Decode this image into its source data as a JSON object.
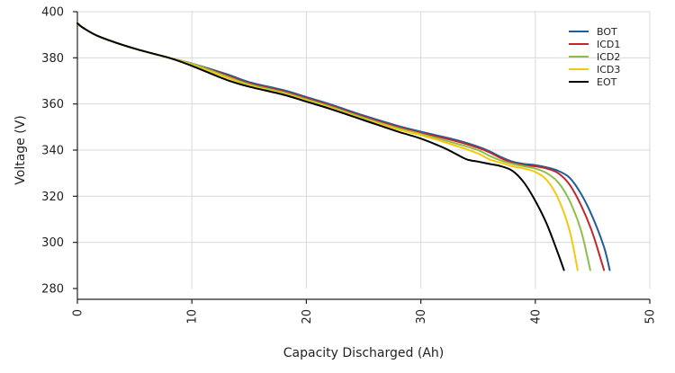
{
  "chart_data": {
    "type": "line",
    "xlabel": "Capacity Discharged (Ah)",
    "ylabel": "Voltage (V)",
    "xlim": [
      0,
      50
    ],
    "ylim": [
      280,
      400
    ],
    "xticks": [
      0,
      10,
      20,
      30,
      40,
      50
    ],
    "yticks": [
      280,
      300,
      320,
      340,
      360,
      380,
      400
    ],
    "grid": true,
    "legend_position": "top-right",
    "series": [
      {
        "name": "BOT",
        "color": "#1f5f99",
        "points": [
          [
            0,
            395
          ],
          [
            0.5,
            393
          ],
          [
            2,
            389
          ],
          [
            5,
            384
          ],
          [
            8,
            380
          ],
          [
            10,
            377.5
          ],
          [
            13,
            373
          ],
          [
            15,
            369.5
          ],
          [
            18,
            366
          ],
          [
            20,
            363
          ],
          [
            22,
            360
          ],
          [
            25,
            355
          ],
          [
            28,
            350.5
          ],
          [
            30,
            348
          ],
          [
            33,
            344.5
          ],
          [
            35,
            341.5
          ],
          [
            36,
            339.5
          ],
          [
            37,
            337
          ],
          [
            38,
            335
          ],
          [
            39,
            334
          ],
          [
            40,
            333.5
          ],
          [
            41,
            332.5
          ],
          [
            42,
            331
          ],
          [
            43,
            328
          ],
          [
            44,
            321
          ],
          [
            45,
            311
          ],
          [
            46,
            298
          ],
          [
            46.5,
            288
          ]
        ]
      },
      {
        "name": "ICD1",
        "color": "#c0282d",
        "points": [
          [
            0,
            395
          ],
          [
            0.5,
            393
          ],
          [
            2,
            389
          ],
          [
            5,
            384
          ],
          [
            8,
            380
          ],
          [
            10,
            377.5
          ],
          [
            13,
            372.5
          ],
          [
            15,
            369
          ],
          [
            18,
            365.5
          ],
          [
            20,
            362.5
          ],
          [
            22,
            359.5
          ],
          [
            25,
            354.5
          ],
          [
            28,
            350
          ],
          [
            30,
            347.5
          ],
          [
            33,
            344
          ],
          [
            35,
            341
          ],
          [
            36,
            339
          ],
          [
            37,
            336.5
          ],
          [
            38,
            334.5
          ],
          [
            39,
            333.5
          ],
          [
            40,
            333
          ],
          [
            41,
            332
          ],
          [
            42,
            330
          ],
          [
            43,
            325
          ],
          [
            44,
            316
          ],
          [
            45,
            304
          ],
          [
            46,
            288
          ]
        ]
      },
      {
        "name": "ICD2",
        "color": "#8cc04b",
        "points": [
          [
            0,
            395
          ],
          [
            0.5,
            393
          ],
          [
            2,
            389
          ],
          [
            5,
            384
          ],
          [
            8,
            380
          ],
          [
            10,
            377.5
          ],
          [
            13,
            372
          ],
          [
            15,
            368.5
          ],
          [
            18,
            365
          ],
          [
            20,
            362
          ],
          [
            22,
            359
          ],
          [
            25,
            354
          ],
          [
            28,
            349.5
          ],
          [
            30,
            347
          ],
          [
            33,
            343
          ],
          [
            35,
            340
          ],
          [
            36,
            337.5
          ],
          [
            37,
            335.5
          ],
          [
            38,
            334
          ],
          [
            39,
            333
          ],
          [
            40,
            332
          ],
          [
            41,
            330
          ],
          [
            42,
            326
          ],
          [
            43,
            318
          ],
          [
            44,
            305
          ],
          [
            44.8,
            288
          ]
        ]
      },
      {
        "name": "ICD3",
        "color": "#f2c811",
        "points": [
          [
            0,
            395
          ],
          [
            0.5,
            393
          ],
          [
            2,
            389
          ],
          [
            5,
            384
          ],
          [
            8,
            380
          ],
          [
            10,
            377
          ],
          [
            13,
            371.5
          ],
          [
            15,
            368
          ],
          [
            18,
            364.5
          ],
          [
            20,
            361.5
          ],
          [
            22,
            358.5
          ],
          [
            25,
            353.5
          ],
          [
            28,
            349
          ],
          [
            30,
            346.5
          ],
          [
            33,
            342
          ],
          [
            35,
            338.5
          ],
          [
            36,
            336
          ],
          [
            37,
            334.5
          ],
          [
            38,
            333
          ],
          [
            39,
            332
          ],
          [
            40,
            330.5
          ],
          [
            41,
            327
          ],
          [
            42,
            319
          ],
          [
            43,
            305
          ],
          [
            43.7,
            288
          ]
        ]
      },
      {
        "name": "EOT",
        "color": "#000000",
        "points": [
          [
            0,
            395
          ],
          [
            0.5,
            393
          ],
          [
            2,
            389
          ],
          [
            5,
            384
          ],
          [
            8,
            380
          ],
          [
            10,
            376.5
          ],
          [
            13,
            370.5
          ],
          [
            15,
            367.5
          ],
          [
            18,
            364
          ],
          [
            20,
            361
          ],
          [
            22,
            358
          ],
          [
            25,
            353
          ],
          [
            28,
            348
          ],
          [
            30,
            345
          ],
          [
            32,
            341
          ],
          [
            33,
            338.5
          ],
          [
            34,
            336
          ],
          [
            35,
            335
          ],
          [
            36,
            334
          ],
          [
            37,
            333
          ],
          [
            38,
            331
          ],
          [
            39,
            326
          ],
          [
            40,
            318
          ],
          [
            41,
            308
          ],
          [
            42,
            295
          ],
          [
            42.5,
            288
          ]
        ]
      }
    ]
  }
}
